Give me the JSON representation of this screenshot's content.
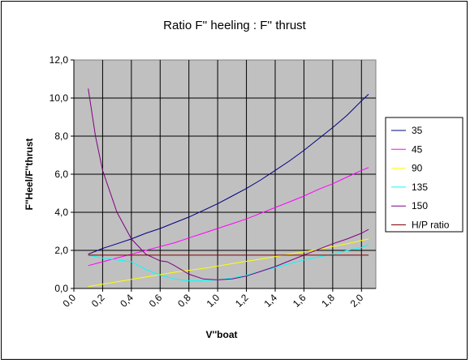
{
  "chart_data": {
    "type": "line",
    "title": "Ratio F'' heeling : F'' thrust",
    "xlabel": "V''boat",
    "ylabel": "F''Heel/F''thrust",
    "xlim": [
      0,
      2.1
    ],
    "ylim": [
      0,
      12
    ],
    "xticks": [
      "0,0",
      "0,2",
      "0,4",
      "0,6",
      "0,8",
      "1,0",
      "1,2",
      "1,4",
      "1,6",
      "1,8",
      "2,0"
    ],
    "yticks": [
      "0,0",
      "2,0",
      "4,0",
      "6,0",
      "8,0",
      "10,0",
      "12,0"
    ],
    "grid": true,
    "plot_background": "#c0c0c0",
    "legend_position": "right",
    "series": [
      {
        "name": "35",
        "color": "#000080",
        "x": [
          0.1,
          0.2,
          0.3,
          0.4,
          0.5,
          0.6,
          0.7,
          0.8,
          0.9,
          1.0,
          1.1,
          1.2,
          1.3,
          1.4,
          1.5,
          1.6,
          1.7,
          1.8,
          1.9,
          2.0,
          2.05
        ],
        "y": [
          1.8,
          2.1,
          2.35,
          2.6,
          2.9,
          3.15,
          3.45,
          3.75,
          4.1,
          4.45,
          4.85,
          5.25,
          5.7,
          6.2,
          6.7,
          7.25,
          7.85,
          8.45,
          9.1,
          9.85,
          10.2
        ]
      },
      {
        "name": "45",
        "color": "#ff00ff",
        "x": [
          0.1,
          0.2,
          0.3,
          0.4,
          0.5,
          0.6,
          0.7,
          0.8,
          0.9,
          1.0,
          1.1,
          1.2,
          1.3,
          1.4,
          1.5,
          1.6,
          1.7,
          1.8,
          1.9,
          2.0,
          2.05
        ],
        "y": [
          1.2,
          1.4,
          1.6,
          1.8,
          2.0,
          2.2,
          2.4,
          2.65,
          2.9,
          3.15,
          3.4,
          3.65,
          3.95,
          4.25,
          4.55,
          4.85,
          5.2,
          5.5,
          5.85,
          6.2,
          6.35
        ]
      },
      {
        "name": "90",
        "color": "#ffff00",
        "x": [
          0.1,
          0.3,
          0.5,
          0.7,
          0.9,
          1.1,
          1.3,
          1.5,
          1.7,
          1.9,
          2.05
        ],
        "y": [
          0.1,
          0.35,
          0.6,
          0.85,
          1.05,
          1.3,
          1.55,
          1.8,
          2.05,
          2.35,
          2.6
        ]
      },
      {
        "name": "135",
        "color": "#00ffff",
        "x": [
          0.1,
          0.2,
          0.3,
          0.4,
          0.5,
          0.6,
          0.7,
          0.8,
          0.9,
          1.0,
          1.1,
          1.2,
          1.3,
          1.4,
          1.5,
          1.6,
          1.7,
          1.8,
          1.9,
          2.0,
          2.05
        ],
        "y": [
          1.75,
          1.6,
          1.5,
          1.4,
          1.0,
          0.7,
          0.5,
          0.4,
          0.4,
          0.45,
          0.55,
          0.7,
          0.9,
          1.1,
          1.3,
          1.5,
          1.65,
          1.8,
          2.0,
          2.15,
          2.3
        ]
      },
      {
        "name": "150",
        "color": "#800080",
        "x": [
          0.1,
          0.15,
          0.2,
          0.3,
          0.4,
          0.5,
          0.6,
          0.65,
          0.7,
          0.8,
          0.9,
          1.0,
          1.1,
          1.2,
          1.3,
          1.4,
          1.5,
          1.6,
          1.7,
          1.8,
          1.9,
          2.0,
          2.05
        ],
        "y": [
          10.5,
          8.0,
          6.2,
          4.0,
          2.6,
          1.8,
          1.45,
          1.4,
          1.2,
          0.75,
          0.5,
          0.45,
          0.5,
          0.65,
          0.9,
          1.15,
          1.45,
          1.75,
          2.05,
          2.35,
          2.6,
          2.9,
          3.1
        ]
      },
      {
        "name": "H/P ratio",
        "color": "#800000",
        "x": [
          0.1,
          2.05
        ],
        "y": [
          1.75,
          1.75
        ]
      }
    ]
  }
}
